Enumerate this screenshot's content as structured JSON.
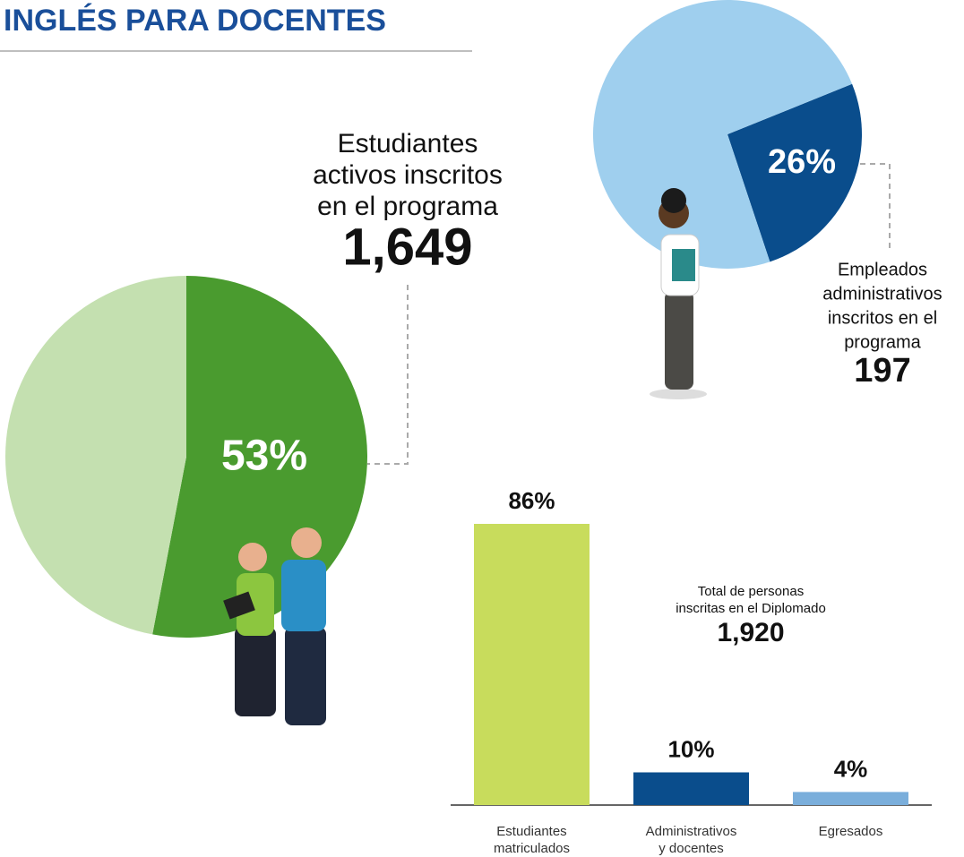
{
  "title": "INGLÉS PARA DOCENTES",
  "chart_data": [
    {
      "type": "pie",
      "values": [
        53,
        47
      ],
      "value_labels": [
        "53%",
        null
      ],
      "colors": [
        "#4a9b2f",
        "#c4e0b0"
      ],
      "caption": [
        "Estudiantes",
        "activos inscritos",
        "en el programa"
      ],
      "total": "1,649"
    },
    {
      "type": "pie",
      "values": [
        26,
        74
      ],
      "value_labels": [
        "26%",
        null
      ],
      "colors": [
        "#0a4d8c",
        "#9fcfee"
      ],
      "caption": [
        "Empleados",
        "administrativos",
        "inscritos en el",
        "programa"
      ],
      "total": "197"
    },
    {
      "type": "bar",
      "categories": [
        [
          "Estudiantes",
          "matriculados"
        ],
        [
          "Administrativos",
          "y docentes"
        ],
        [
          "Egresados"
        ]
      ],
      "values": [
        86,
        10,
        4
      ],
      "value_labels": [
        "86%",
        "10%",
        "4%"
      ],
      "colors": [
        "#c8dc5c",
        "#0a4d8c",
        "#7aaedb"
      ],
      "caption": [
        "Total de personas",
        "inscritas en el Diplomado"
      ],
      "total": "1,920"
    }
  ]
}
